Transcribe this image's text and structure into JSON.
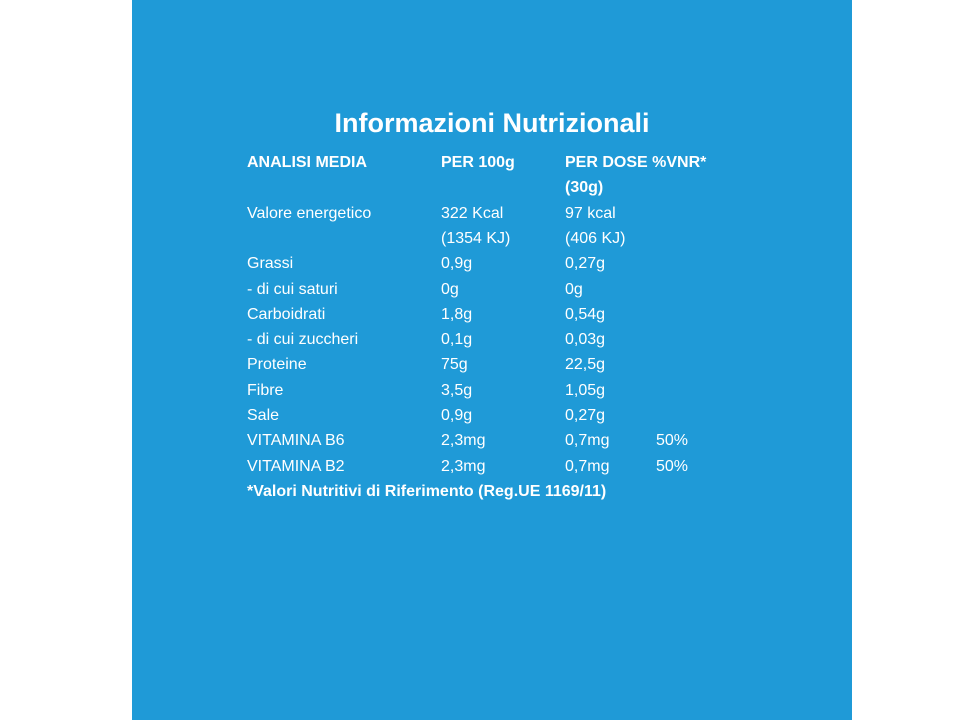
{
  "title": "Informazioni Nutrizionali",
  "header": {
    "analysis": "ANALISI MEDIA",
    "per100": "PER 100g",
    "perdose": [
      "PER DOSE %VNR*",
      "(30g)"
    ]
  },
  "rows": [
    {
      "label": "Valore energetico",
      "per100": [
        "322 Kcal",
        "(1354 KJ)"
      ],
      "perdose": [
        "97 kcal",
        "(406 KJ)"
      ]
    },
    {
      "label": "Grassi",
      "per100": [
        "0,9g"
      ],
      "perdose": [
        "0,27g"
      ]
    },
    {
      "label": "- di cui saturi",
      "per100": [
        "0g"
      ],
      "perdose": [
        "0g"
      ]
    },
    {
      "label": "Carboidrati",
      "per100": [
        "1,8g"
      ],
      "perdose": [
        "0,54g"
      ]
    },
    {
      "label": "- di cui zuccheri",
      "per100": [
        "0,1g"
      ],
      "perdose": [
        "0,03g"
      ]
    },
    {
      "label": "Proteine",
      "per100": [
        "75g"
      ],
      "perdose": [
        "22,5g"
      ]
    },
    {
      "label": "Fibre",
      "per100": [
        "3,5g"
      ],
      "perdose": [
        "1,05g"
      ]
    },
    {
      "label": "Sale",
      "per100": [
        "0,9g"
      ],
      "perdose": [
        "0,27g"
      ]
    },
    {
      "label": "VITAMINA B6",
      "per100": [
        "2,3mg"
      ],
      "perdose": [
        "0,7mg"
      ],
      "vnr": "50%"
    },
    {
      "label": "VITAMINA B2",
      "per100": [
        "2,3mg"
      ],
      "perdose": [
        "0,7mg"
      ],
      "vnr": "50%"
    }
  ],
  "footnote": "*Valori Nutritivi di Riferimento (Reg.UE 1169/11)"
}
